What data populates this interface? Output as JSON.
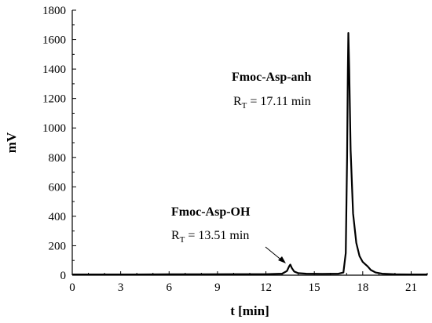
{
  "chart_data": {
    "type": "line",
    "xlabel": "t [min]",
    "ylabel": "mV",
    "xlim": [
      0,
      22
    ],
    "ylim": [
      0,
      1800
    ],
    "x_ticks": [
      0,
      3,
      6,
      9,
      12,
      15,
      18,
      21
    ],
    "y_ticks": [
      0,
      200,
      400,
      600,
      800,
      1000,
      1200,
      1400,
      1600,
      1800
    ],
    "grid": false,
    "series": [
      {
        "color": "#000000",
        "x": [
          0,
          2,
          4,
          6,
          8,
          10,
          12,
          13.0,
          13.3,
          13.45,
          13.51,
          13.6,
          13.75,
          14.0,
          14.5,
          15.5,
          16.5,
          16.8,
          16.95,
          17.03,
          17.08,
          17.11,
          17.16,
          17.25,
          17.4,
          17.6,
          17.8,
          18.0,
          18.15,
          18.3,
          18.5,
          18.8,
          19.2,
          19.6,
          20.0,
          21.0,
          22.0
        ],
        "y": [
          5,
          5,
          5,
          6,
          6,
          7,
          7,
          10,
          28,
          62,
          72,
          50,
          25,
          14,
          10,
          9,
          10,
          18,
          150,
          800,
          1400,
          1645,
          1400,
          850,
          420,
          220,
          130,
          90,
          75,
          60,
          35,
          18,
          10,
          8,
          6,
          5,
          5
        ]
      }
    ],
    "annotations": [
      {
        "name": "Fmoc-Asp-OH",
        "rt_main": "R",
        "rt_sub": "T",
        "rt_text": " = 13.51 min",
        "peak_x": 13.51,
        "arrow": true
      },
      {
        "name": "Fmoc-Asp-anh",
        "rt_main": "R",
        "rt_sub": "T",
        "rt_text": " = 17.11 min",
        "peak_x": 17.11,
        "arrow": false
      }
    ]
  }
}
